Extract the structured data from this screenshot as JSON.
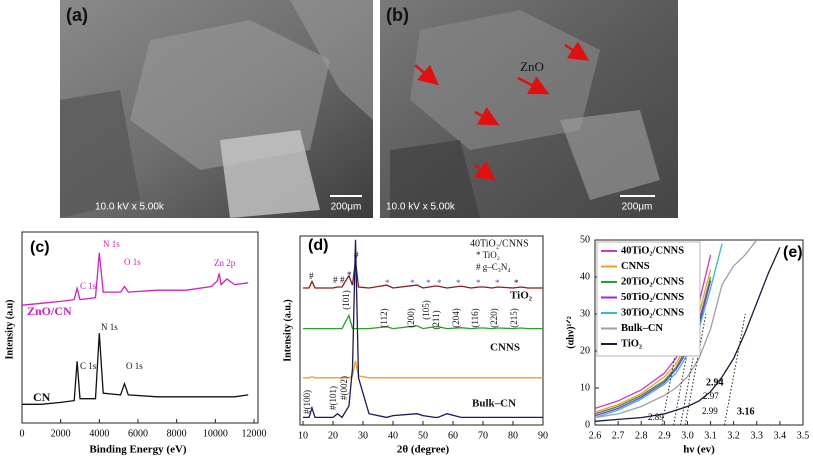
{
  "images": [
    {
      "label": "(a)",
      "info": "10.0 kV x 5.00k",
      "scale": "200μm"
    },
    {
      "label": "(b)",
      "info": "10.0 kV x 5.00k",
      "scale": "200μm",
      "annotation": "ZnO"
    }
  ],
  "chart_data": [
    {
      "type": "line",
      "label": "(c)",
      "xlabel": "Binding Energy (eV)",
      "ylabel": "Intensity (a.u)",
      "x": [
        0,
        1000,
        2000,
        2700,
        2850,
        3000,
        3800,
        4000,
        4200,
        5100,
        5300,
        5500,
        7000,
        8500,
        9800,
        10100,
        10200,
        10300,
        10600,
        11000,
        11700
      ],
      "series": [
        {
          "name": "ZnO/CN",
          "color": "#d020c0",
          "values": [
            63,
            64,
            65,
            66,
            72,
            66,
            67,
            91,
            70,
            70,
            73,
            70,
            71,
            71,
            73,
            76,
            80,
            74,
            77,
            74,
            75
          ]
        },
        {
          "name": "CN",
          "color": "#111111",
          "values": [
            10,
            10,
            11,
            12,
            33,
            13,
            13,
            48,
            16,
            15,
            21,
            15,
            14,
            14,
            14,
            14,
            14,
            14,
            14,
            14,
            15
          ]
        }
      ],
      "xlim": [
        0,
        12000
      ],
      "xticks": [
        0,
        2000,
        4000,
        6000,
        8000,
        10000,
        12000
      ],
      "ylim": [
        0,
        100
      ],
      "annotations": [
        {
          "text": "C 1s",
          "color": "#d020c0"
        },
        {
          "text": "N 1s",
          "color": "#d020c0"
        },
        {
          "text": "O 1s",
          "color": "#d020c0"
        },
        {
          "text": "Zn 2p",
          "color": "#d020c0"
        },
        {
          "text": "C 1s",
          "color": "#111111"
        },
        {
          "text": "N 1s",
          "color": "#111111"
        },
        {
          "text": "O 1s",
          "color": "#111111"
        }
      ]
    },
    {
      "type": "line",
      "label": "(d)",
      "xlabel": "2θ (degree)",
      "ylabel": "Intensity (a.u.)",
      "x": [
        10,
        12,
        13,
        14,
        20,
        21.5,
        23,
        25.3,
        26.5,
        27.5,
        28.5,
        32,
        37.9,
        40,
        48,
        50,
        53.9,
        55,
        58,
        62.7,
        66,
        68.8,
        70.3,
        73,
        75,
        80,
        82.7,
        85,
        90
      ],
      "series": [
        {
          "name": "40TiO₂/CNNS",
          "color": "#8b1a1a",
          "values": [
            72.5,
            72.5,
            76,
            72.5,
            72.5,
            73,
            73,
            79,
            74,
            87,
            73,
            72.5,
            74,
            72.5,
            74,
            72.5,
            73.5,
            73.5,
            72.5,
            73.5,
            72.5,
            73,
            73,
            72.5,
            73,
            72.5,
            73,
            72.5,
            72.5
          ]
        },
        {
          "name": "TiO₂",
          "color": "#2ca02c",
          "values": [
            51,
            51,
            51,
            51,
            51,
            51,
            51,
            58,
            51,
            51,
            51,
            51,
            52,
            51,
            52.5,
            51,
            52,
            52,
            51,
            51.5,
            51,
            51.3,
            51.3,
            51,
            51.3,
            51,
            51.3,
            51,
            51
          ]
        },
        {
          "name": "CNNS",
          "color": "#f0a020",
          "values": [
            25,
            25,
            25.5,
            25,
            25,
            25,
            25,
            25,
            26,
            34,
            26,
            25,
            25,
            25,
            25,
            25,
            25,
            25,
            25,
            25,
            25,
            25,
            25,
            25,
            25,
            25,
            25,
            25,
            25
          ]
        },
        {
          "name": "Bulk–CN",
          "color": "#1a1a5e",
          "values": [
            4,
            4,
            9,
            4,
            4,
            6,
            4,
            10,
            30,
            98,
            25,
            6,
            4,
            5,
            6,
            5,
            4,
            4,
            6,
            4,
            4,
            4,
            4,
            4,
            4,
            4,
            4,
            4,
            4
          ]
        }
      ],
      "xlim": [
        10,
        90
      ],
      "xticks": [
        10,
        20,
        30,
        40,
        50,
        60,
        70,
        80,
        90
      ],
      "ylim": [
        0,
        100
      ],
      "annotations": [
        {
          "text": "#",
          "color": "#111111"
        },
        {
          "text": "#",
          "color": "#111111"
        },
        {
          "text": "#",
          "color": "#111111"
        },
        {
          "text": "*",
          "color": "#111111"
        },
        {
          "text": "#",
          "color": "#111111"
        },
        {
          "text": "*",
          "color": "#5050b0"
        },
        {
          "text": "*",
          "color": "#5050b0"
        },
        {
          "text": "*",
          "color": "#5050b0"
        },
        {
          "text": "*",
          "color": "#5050b0"
        },
        {
          "text": "*",
          "color": "#5050b0"
        },
        {
          "text": "*",
          "color": "#5050b0"
        },
        {
          "text": "*",
          "color": "#5050b0"
        },
        {
          "text": "*",
          "color": "#111111"
        },
        {
          "text": "(101)",
          "color": "#111111"
        },
        {
          "text": "(112)",
          "color": "#111111"
        },
        {
          "text": "(200)",
          "color": "#111111"
        },
        {
          "text": "(105)",
          "color": "#111111"
        },
        {
          "text": "(211)",
          "color": "#111111"
        },
        {
          "text": "(204)",
          "color": "#111111"
        },
        {
          "text": "(116)",
          "color": "#111111"
        },
        {
          "text": "(220)",
          "color": "#111111"
        },
        {
          "text": "(215)",
          "color": "#111111"
        },
        {
          "text": "#(100)",
          "color": "#111111"
        },
        {
          "text": "#(101)",
          "color": "#111111"
        },
        {
          "text": "#(002)",
          "color": "#111111"
        },
        {
          "text": "* TiO₂",
          "color": "#111111"
        },
        {
          "text": "# g–C₃N₄",
          "color": "#111111"
        }
      ]
    },
    {
      "type": "line",
      "label": "(e)",
      "xlabel": "hν (ev)",
      "ylabel": "(αhν)¹ᐟ²",
      "x": [
        2.6,
        2.7,
        2.8,
        2.9,
        2.95,
        3.0,
        3.05,
        3.1,
        3.15,
        3.2,
        3.25,
        3.3,
        3.35,
        3.4,
        3.45
      ],
      "series": [
        {
          "name": "40TiO₂/CNNS",
          "color": "#c83cc8",
          "values": [
            4.5,
            6.5,
            9.5,
            14,
            18,
            24,
            33,
            46,
            null,
            null,
            null,
            null,
            null,
            null,
            null
          ]
        },
        {
          "name": "CNNS",
          "color": "#f0a020",
          "values": [
            3.5,
            5.5,
            8.5,
            13,
            16.5,
            22,
            30,
            42,
            null,
            null,
            null,
            null,
            null,
            null,
            null
          ]
        },
        {
          "name": "20TiO₂/CNNS",
          "color": "#2ca02c",
          "values": [
            3,
            5,
            8,
            12,
            15.5,
            21,
            28,
            40,
            null,
            null,
            null,
            null,
            null,
            null,
            null
          ]
        },
        {
          "name": "50TiO₂/CNNS",
          "color": "#a020f0",
          "values": [
            2.5,
            4.5,
            7.5,
            11.5,
            15,
            20,
            27,
            39,
            null,
            null,
            null,
            null,
            null,
            null,
            null
          ]
        },
        {
          "name": "30TiO₂/CNNS",
          "color": "#30c0c0",
          "values": [
            2,
            4,
            7,
            11,
            14,
            19,
            26,
            37,
            49,
            null,
            null,
            null,
            null,
            null,
            null
          ]
        },
        {
          "name": "Bulk–CN",
          "color": "#a0a0a0",
          "values": [
            2,
            3,
            5,
            8,
            10,
            13,
            18,
            26,
            38,
            43,
            46,
            50,
            null,
            null,
            null
          ]
        },
        {
          "name": "TiO₂",
          "color": "#1a1a3a",
          "values": [
            1,
            1.5,
            2,
            3,
            4,
            5,
            6.5,
            9,
            13,
            18,
            25,
            33,
            41,
            48,
            null
          ]
        }
      ],
      "xlim": [
        2.6,
        3.5
      ],
      "xticks": [
        2.6,
        2.7,
        2.8,
        2.9,
        {
          "value": 3,
          "label": "3.0"
        },
        3.1,
        3.2,
        3.3,
        3.4,
        3.5
      ],
      "ylim": [
        0,
        50
      ],
      "yticks": [
        0,
        10,
        20,
        30,
        40,
        50
      ],
      "intercepts": [
        2.89,
        2.94,
        2.97,
        2.99,
        3.16
      ]
    }
  ]
}
